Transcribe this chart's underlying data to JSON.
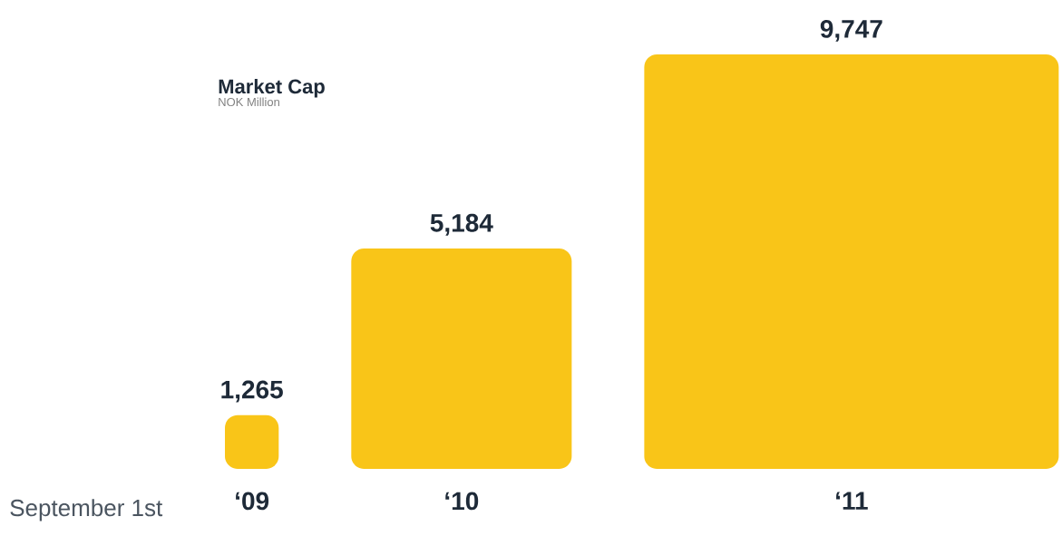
{
  "chart_data": {
    "type": "bar",
    "title": "Market Cap",
    "subtitle": "NOK Million",
    "xlabel": "September 1st",
    "categories": [
      "‘09",
      "‘10",
      "‘11"
    ],
    "values": [
      1265,
      5184,
      9747
    ],
    "value_labels": [
      "1,265",
      "5,184",
      "9,747"
    ],
    "color": "#f9c518"
  }
}
